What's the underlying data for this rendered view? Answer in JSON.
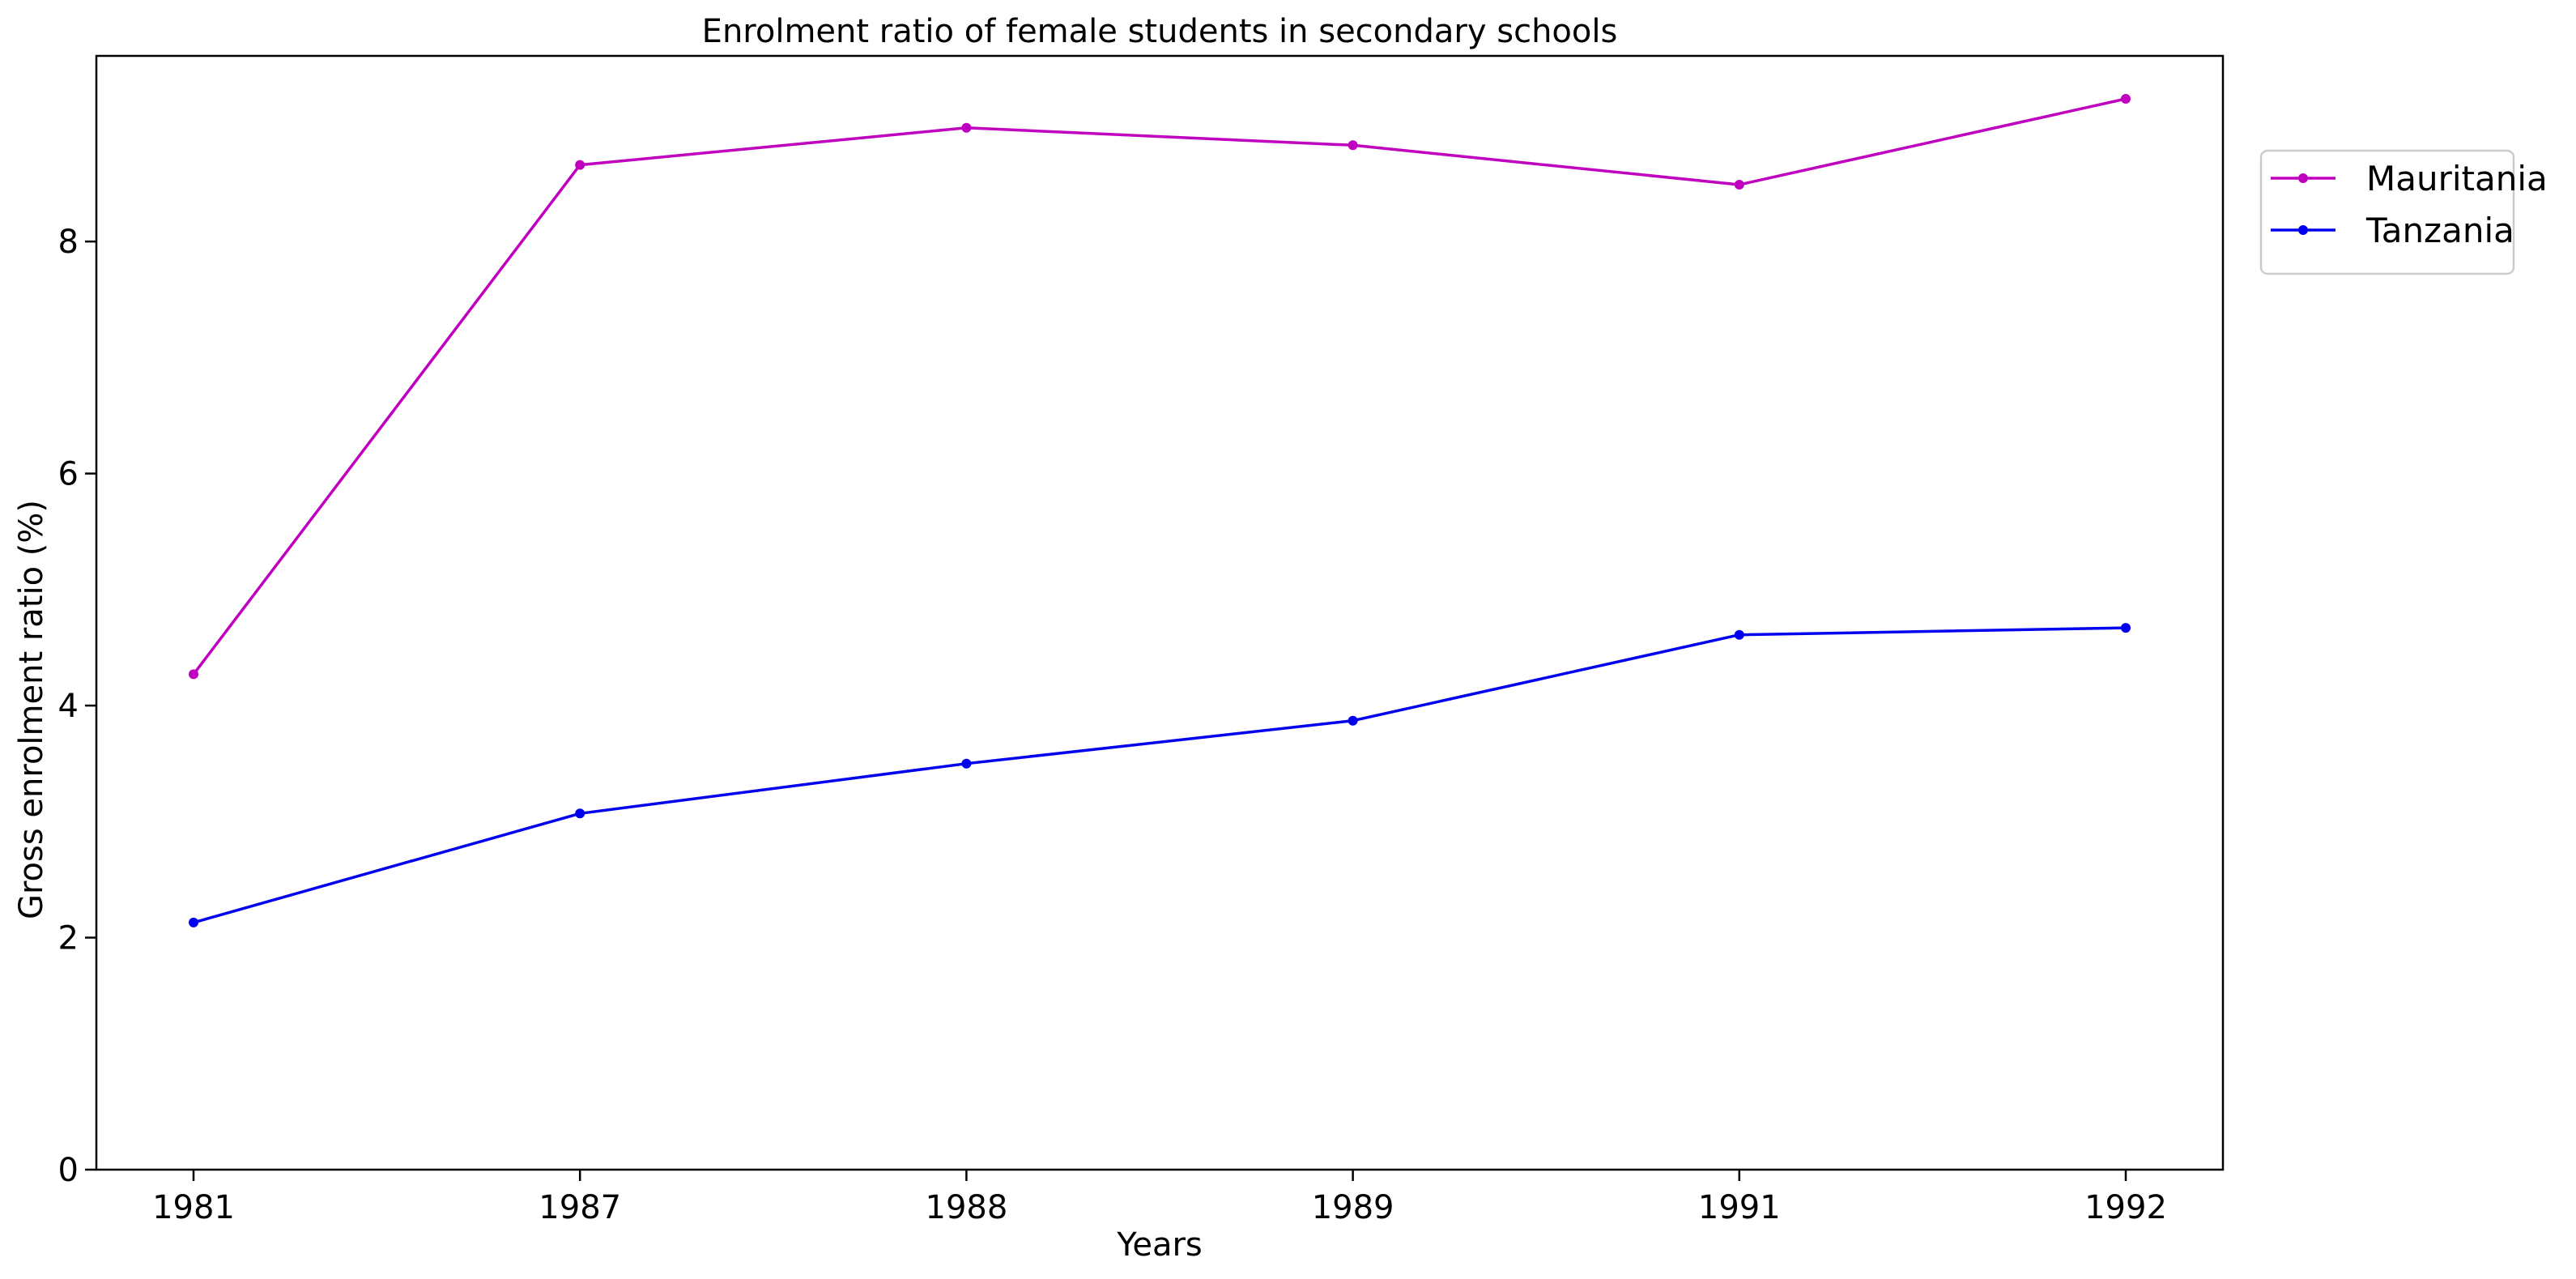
{
  "chart_data": {
    "type": "line",
    "title": "Enrolment ratio of female students in secondary schools",
    "xlabel": "Years",
    "ylabel": "Gross enrolment ratio (%)",
    "categories": [
      "1981",
      "1987",
      "1988",
      "1989",
      "1991",
      "1992"
    ],
    "ylim": [
      0,
      9.6
    ],
    "yticks": [
      0,
      2,
      4,
      6,
      8
    ],
    "grid": false,
    "legend_position": "top-right-outside",
    "series": [
      {
        "name": "Mauritania",
        "color": "#bf00bf",
        "values": [
          4.27,
          8.66,
          8.98,
          8.83,
          8.49,
          9.23
        ]
      },
      {
        "name": "Tanzania",
        "color": "#0000ee",
        "values": [
          2.13,
          3.07,
          3.5,
          3.87,
          4.61,
          4.67
        ]
      }
    ]
  }
}
